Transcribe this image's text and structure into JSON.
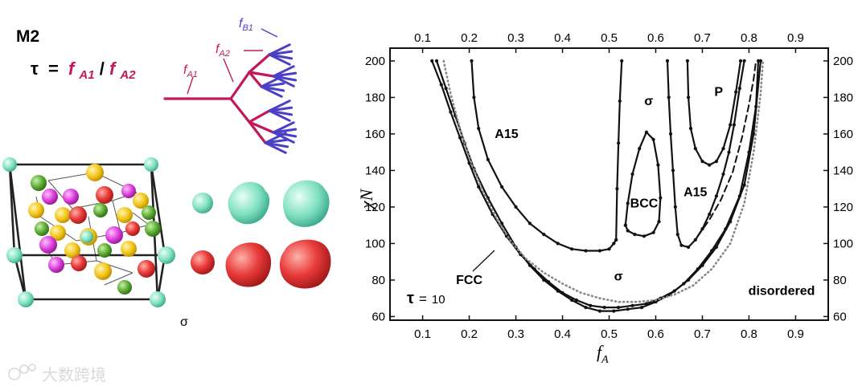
{
  "panel_label": "M2",
  "tau_definition": {
    "tau": "τ",
    "eq": "=",
    "f1": "f",
    "f1_sub": "A1",
    "slash": "/",
    "f2": "f",
    "f2_sub": "A2"
  },
  "tree_labels": {
    "fA1": {
      "f": "f",
      "sub": "A1"
    },
    "fA2": {
      "f": "f",
      "sub": "A2"
    },
    "fB1": {
      "f": "f",
      "sub": "B1"
    }
  },
  "structure_caption": "σ",
  "watermark": "大数跨境",
  "colors": {
    "tree_A": "#c2185b",
    "tree_B": "#4b3fc8",
    "particle_cyan": "#7fe0c0",
    "particle_red": "#e83a3a",
    "particle_yellow": "#f2c418",
    "particle_magenta": "#d93bd9",
    "particle_green": "#5aa832",
    "dotted_curve": "#888888"
  },
  "chart_data": {
    "type": "line",
    "title": "",
    "xlabel": "f",
    "xlabel_sub": "A",
    "ylabel": "χN",
    "xlim": [
      0.03,
      0.97
    ],
    "ylim": [
      58,
      207
    ],
    "x_ticks": [
      0.1,
      0.2,
      0.3,
      0.4,
      0.5,
      0.6,
      0.7,
      0.8,
      0.9
    ],
    "x_tick_labels": [
      "0.1",
      "0.2",
      "0.3",
      "0.4",
      "0.5",
      "0.6",
      "0.7",
      "0.8",
      "0.9"
    ],
    "y_ticks": [
      60,
      80,
      100,
      120,
      140,
      160,
      180,
      200
    ],
    "y_tick_labels": [
      "60",
      "80",
      "100",
      "120",
      "140",
      "160",
      "180",
      "200"
    ],
    "grid": false,
    "phase_labels": [
      {
        "text": "A15",
        "x": 0.28,
        "y": 160
      },
      {
        "text": "σ",
        "x": 0.585,
        "y": 178
      },
      {
        "text": "P",
        "x": 0.735,
        "y": 183
      },
      {
        "text": "BCC",
        "x": 0.575,
        "y": 122
      },
      {
        "text": "A15",
        "x": 0.685,
        "y": 128
      },
      {
        "text": "σ",
        "x": 0.52,
        "y": 82
      },
      {
        "text": "FCC",
        "x": 0.2,
        "y": 80
      },
      {
        "text": "disordered",
        "x": 0.87,
        "y": 74
      }
    ],
    "tau_annotation": {
      "tau": "τ",
      "eq": "=",
      "value": "10"
    },
    "series": [
      {
        "style": "solid",
        "markers": true,
        "points": [
          [
            0.12,
            200
          ],
          [
            0.14,
            187
          ],
          [
            0.16,
            172
          ],
          [
            0.18,
            158
          ],
          [
            0.2,
            144
          ],
          [
            0.22,
            131
          ],
          [
            0.25,
            116
          ],
          [
            0.28,
            104
          ],
          [
            0.31,
            94
          ],
          [
            0.34,
            86
          ],
          [
            0.37,
            79
          ],
          [
            0.4,
            73
          ],
          [
            0.43,
            69
          ],
          [
            0.46,
            66
          ],
          [
            0.49,
            65
          ],
          [
            0.52,
            65
          ],
          [
            0.55,
            66
          ],
          [
            0.58,
            67
          ],
          [
            0.61,
            70
          ],
          [
            0.64,
            74
          ],
          [
            0.67,
            80
          ],
          [
            0.7,
            88
          ],
          [
            0.73,
            98
          ],
          [
            0.76,
            112
          ],
          [
            0.79,
            132
          ],
          [
            0.81,
            160
          ],
          [
            0.825,
            200
          ]
        ]
      },
      {
        "style": "solid",
        "markers": true,
        "points": [
          [
            0.13,
            200
          ],
          [
            0.15,
            185
          ],
          [
            0.17,
            170
          ],
          [
            0.19,
            155
          ],
          [
            0.21,
            141
          ],
          [
            0.24,
            125
          ],
          [
            0.27,
            111
          ],
          [
            0.3,
            98
          ],
          [
            0.33,
            88
          ],
          [
            0.36,
            80
          ],
          [
            0.39,
            74
          ],
          [
            0.42,
            69
          ],
          [
            0.45,
            65
          ],
          [
            0.48,
            63
          ],
          [
            0.51,
            63
          ],
          [
            0.54,
            64
          ],
          [
            0.57,
            65
          ],
          [
            0.6,
            68
          ],
          [
            0.63,
            72
          ],
          [
            0.66,
            78
          ],
          [
            0.69,
            86
          ],
          [
            0.72,
            96
          ],
          [
            0.75,
            108
          ],
          [
            0.78,
            126
          ],
          [
            0.8,
            150
          ],
          [
            0.815,
            175
          ],
          [
            0.82,
            200
          ]
        ]
      },
      {
        "style": "dotted",
        "markers": false,
        "points": [
          [
            0.145,
            200
          ],
          [
            0.16,
            182
          ],
          [
            0.18,
            163
          ],
          [
            0.2,
            147
          ],
          [
            0.23,
            128
          ],
          [
            0.26,
            113
          ],
          [
            0.29,
            101
          ],
          [
            0.32,
            92
          ],
          [
            0.36,
            84
          ],
          [
            0.4,
            78
          ],
          [
            0.44,
            73
          ],
          [
            0.48,
            70
          ],
          [
            0.52,
            68
          ],
          [
            0.56,
            68
          ],
          [
            0.6,
            69
          ],
          [
            0.64,
            72
          ],
          [
            0.68,
            77
          ],
          [
            0.72,
            86
          ],
          [
            0.76,
            100
          ],
          [
            0.79,
            122
          ],
          [
            0.81,
            150
          ],
          [
            0.825,
            182
          ],
          [
            0.83,
            200
          ]
        ]
      },
      {
        "style": "solid",
        "markers": true,
        "points": [
          [
            0.205,
            200
          ],
          [
            0.21,
            180
          ],
          [
            0.22,
            163
          ],
          [
            0.24,
            146
          ],
          [
            0.27,
            131
          ],
          [
            0.3,
            120
          ],
          [
            0.33,
            111
          ],
          [
            0.36,
            105
          ],
          [
            0.39,
            100
          ],
          [
            0.42,
            97
          ],
          [
            0.45,
            96
          ],
          [
            0.48,
            96
          ],
          [
            0.5,
            97
          ],
          [
            0.51,
            100
          ],
          [
            0.515,
            102
          ]
        ]
      },
      {
        "style": "solid",
        "markers": true,
        "points": [
          [
            0.515,
            102
          ],
          [
            0.517,
            130
          ],
          [
            0.52,
            155
          ],
          [
            0.523,
            178
          ],
          [
            0.527,
            200
          ]
        ]
      },
      {
        "style": "solid",
        "markers": true,
        "points": [
          [
            0.535,
            110
          ],
          [
            0.54,
            122
          ],
          [
            0.55,
            138
          ],
          [
            0.565,
            152
          ],
          [
            0.58,
            161
          ],
          [
            0.595,
            157
          ],
          [
            0.605,
            143
          ],
          [
            0.61,
            125
          ],
          [
            0.607,
            112
          ],
          [
            0.595,
            106
          ],
          [
            0.575,
            104
          ],
          [
            0.555,
            105
          ],
          [
            0.54,
            107
          ],
          [
            0.535,
            110
          ]
        ]
      },
      {
        "style": "solid",
        "markers": true,
        "points": [
          [
            0.625,
            200
          ],
          [
            0.628,
            180
          ],
          [
            0.632,
            160
          ],
          [
            0.637,
            140
          ],
          [
            0.642,
            120
          ],
          [
            0.647,
            105
          ],
          [
            0.655,
            99
          ],
          [
            0.67,
            98
          ],
          [
            0.685,
            102
          ],
          [
            0.7,
            108
          ],
          [
            0.715,
            116
          ],
          [
            0.73,
            126
          ],
          [
            0.745,
            138
          ],
          [
            0.757,
            150
          ],
          [
            0.768,
            165
          ],
          [
            0.78,
            185
          ],
          [
            0.79,
            200
          ]
        ]
      },
      {
        "style": "solid",
        "markers": true,
        "points": [
          [
            0.668,
            200
          ],
          [
            0.67,
            180
          ],
          [
            0.675,
            163
          ],
          [
            0.685,
            152
          ],
          [
            0.7,
            145
          ],
          [
            0.715,
            143
          ],
          [
            0.73,
            145
          ],
          [
            0.745,
            152
          ],
          [
            0.76,
            165
          ],
          [
            0.772,
            183
          ],
          [
            0.782,
            200
          ]
        ]
      },
      {
        "style": "dashed",
        "markers": false,
        "points": [
          [
            0.69,
            104
          ],
          [
            0.715,
            113
          ],
          [
            0.74,
            124
          ],
          [
            0.765,
            139
          ],
          [
            0.785,
            158
          ],
          [
            0.8,
            176
          ],
          [
            0.81,
            190
          ],
          [
            0.815,
            200
          ]
        ]
      }
    ]
  }
}
